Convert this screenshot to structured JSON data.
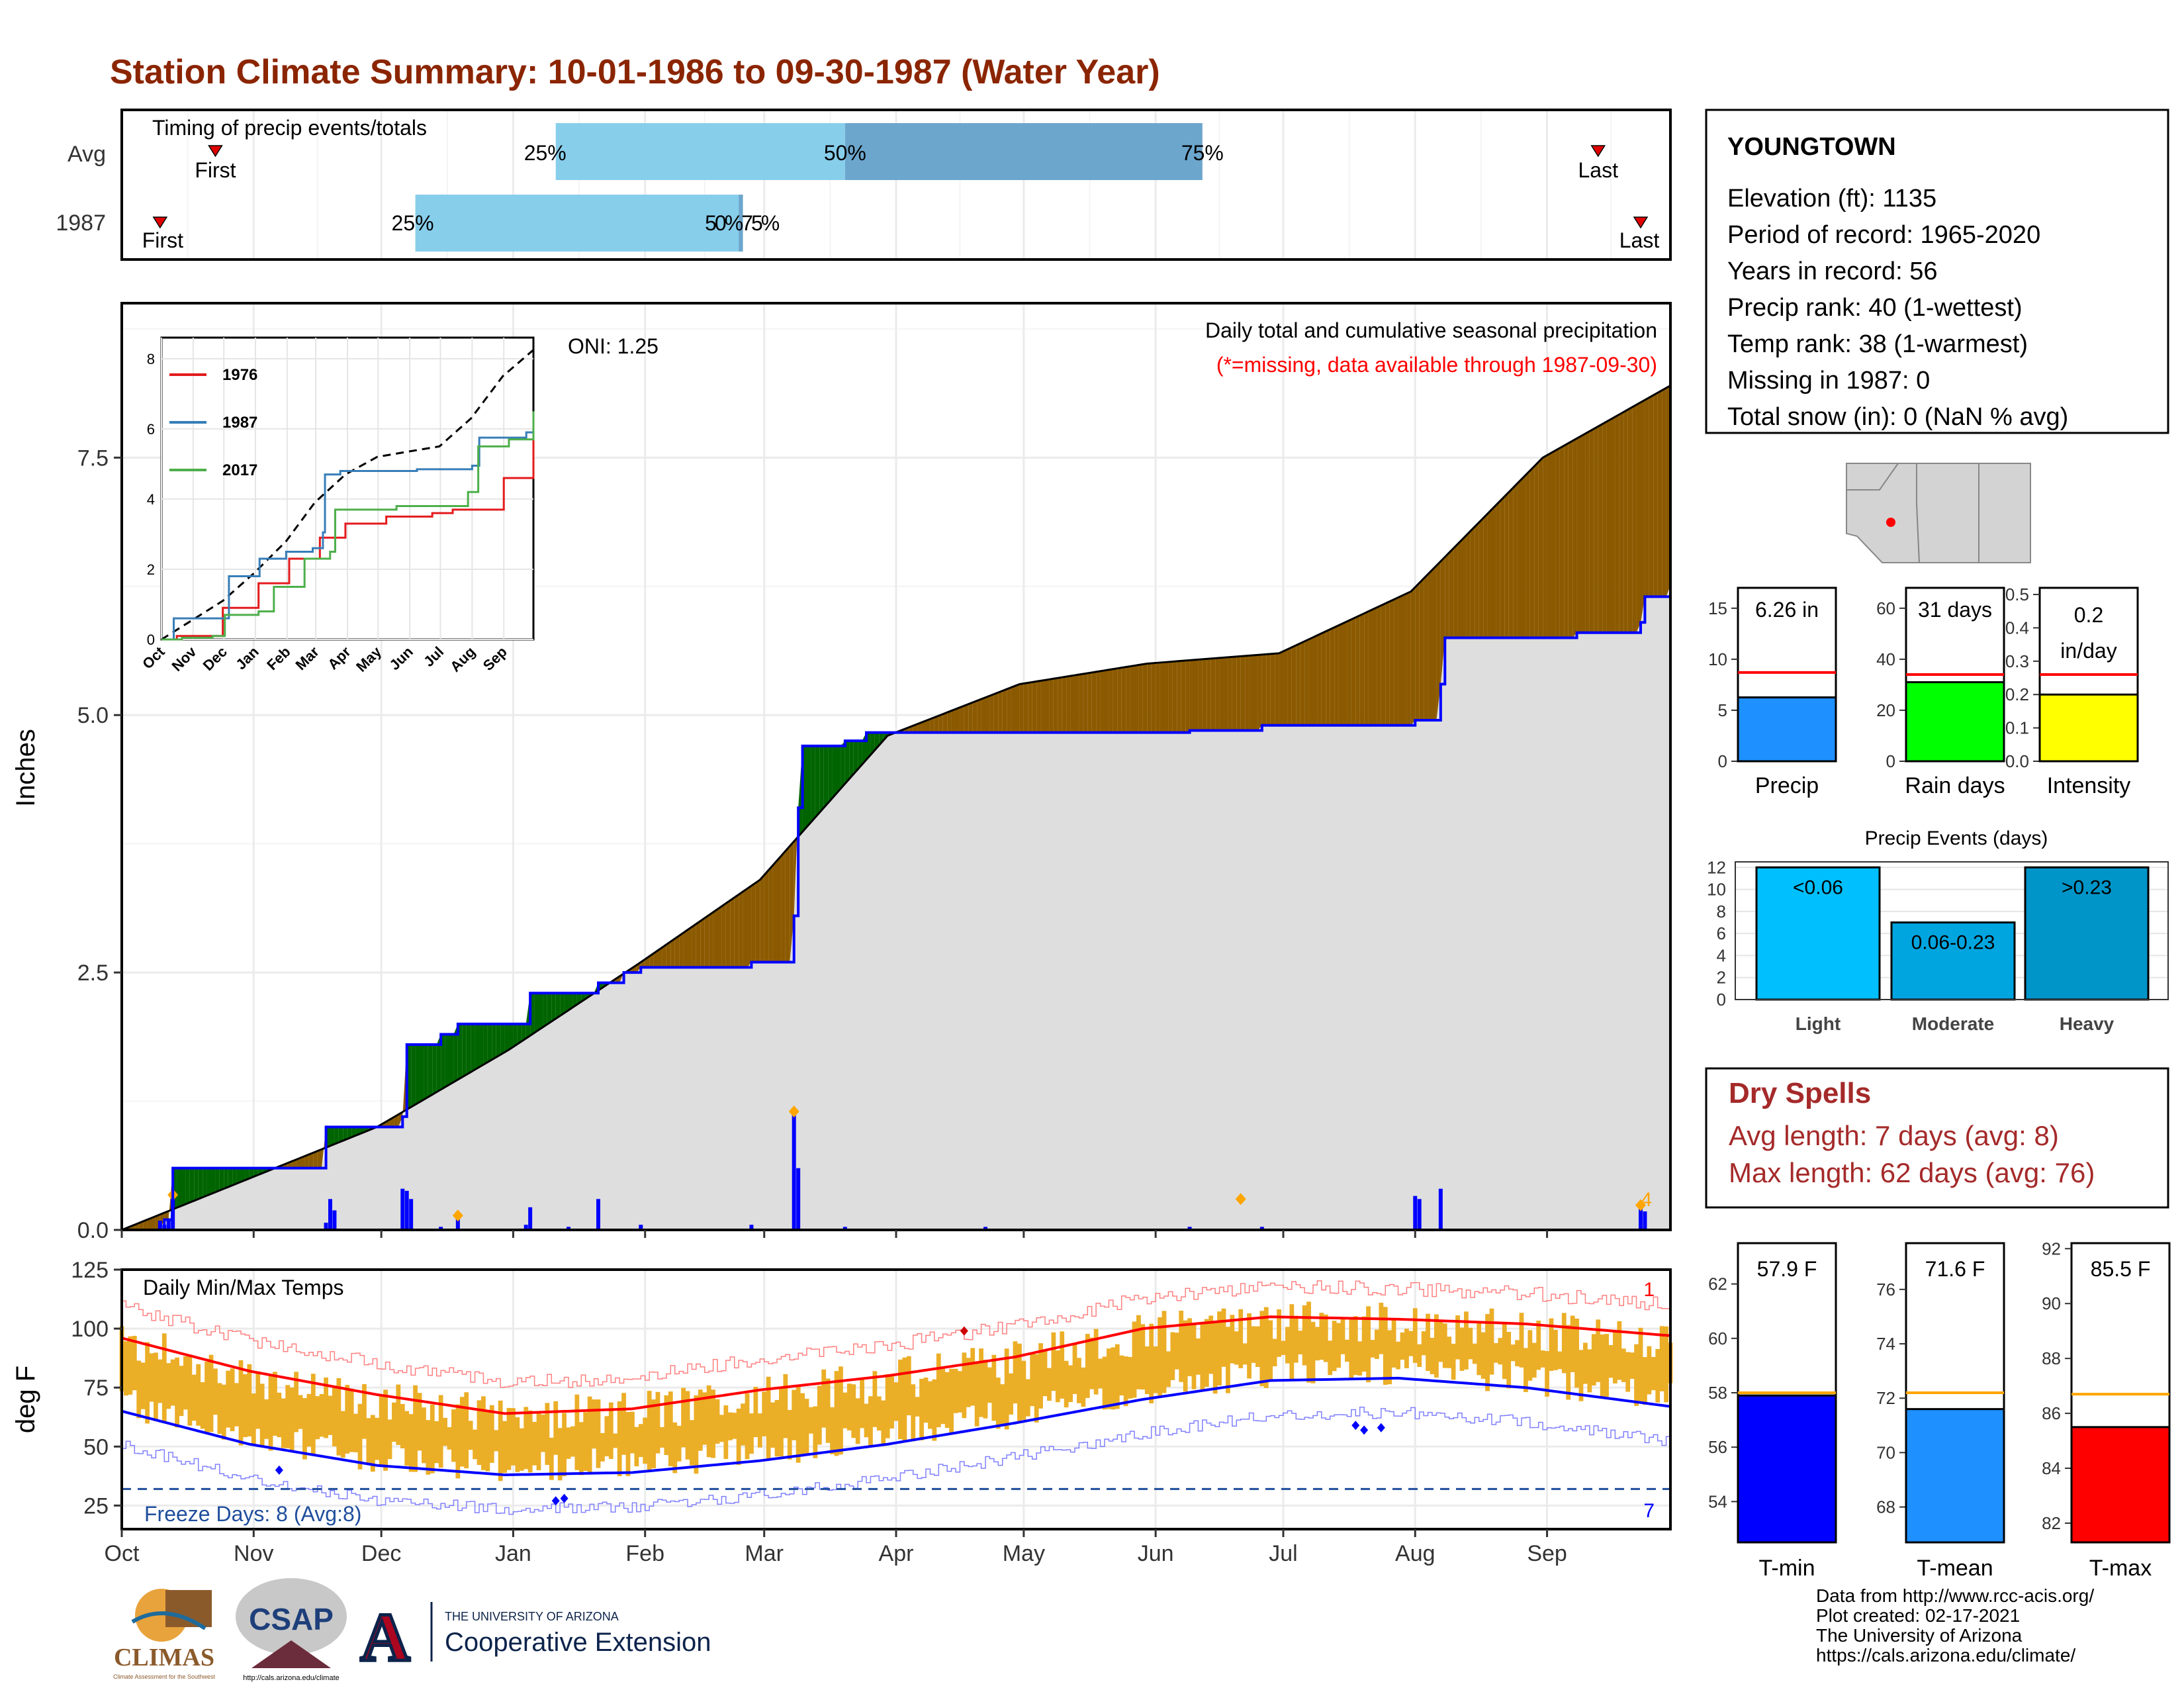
{
  "header": {
    "title": "Station Climate Summary: 10-01-1986 to 09-30-1987 (Water Year)"
  },
  "colors": {
    "title": "#8B2500",
    "surplus": "#006400",
    "deficit": "#8B5A00",
    "area": "#DEDEDE",
    "avg_line": "#000000",
    "current_line": "#0000FF",
    "tmax_avg": "#FF0000",
    "tmin_avg": "#0000FF",
    "range_bar": "#EBAE27",
    "timing_light": "#87CEEB",
    "timing_dark": "#6CA6CD"
  },
  "timing": {
    "title": "Timing of precip events/totals",
    "row_labels": [
      "Avg",
      "1987"
    ],
    "pct_labels": [
      "25%",
      "50%",
      "75%"
    ],
    "overlap_label": "50%75%",
    "first_label": "First",
    "last_label": "Last",
    "avg_days": {
      "first": 22,
      "p25": 102,
      "p50": 170,
      "p75": 254,
      "last": 347
    },
    "yr_days": {
      "first": 9,
      "p25": 69,
      "p50": 145,
      "p75": 146,
      "last": 357
    }
  },
  "precip_panel": {
    "ylabel": "Inches",
    "yticks": [
      "0.0",
      "2.5",
      "5.0",
      "7.5"
    ],
    "oni": "ONI: 1.25",
    "caption1": "Daily total and cumulative seasonal precipitation",
    "caption2": "(*=missing, data available through 1987-09-30)",
    "last_day_count": "4",
    "ymax": 9.0
  },
  "chart_data": {
    "type": "area",
    "title": "Daily total and cumulative seasonal precipitation",
    "ylabel": "Inches",
    "ylim": [
      0,
      9
    ],
    "x_ticks": [
      "Oct",
      "Nov",
      "Dec",
      "Jan",
      "Feb",
      "Mar",
      "Apr",
      "May",
      "Jun",
      "Jul",
      "Aug",
      "Sep"
    ],
    "normal_cumulative": [
      [
        0,
        0.0
      ],
      [
        30,
        0.5
      ],
      [
        60,
        1.0
      ],
      [
        91,
        1.75
      ],
      [
        122,
        2.6
      ],
      [
        150,
        3.4
      ],
      [
        180,
        4.8
      ],
      [
        211,
        5.3
      ],
      [
        241,
        5.5
      ],
      [
        272,
        5.6
      ],
      [
        303,
        6.2
      ],
      [
        334,
        7.5
      ],
      [
        364,
        8.2
      ]
    ],
    "observed_cumulative": [
      [
        0,
        0.0
      ],
      [
        10,
        0.1
      ],
      [
        12,
        0.6
      ],
      [
        45,
        0.6
      ],
      [
        48,
        1.0
      ],
      [
        65,
        1.0
      ],
      [
        66,
        1.1
      ],
      [
        67,
        1.8
      ],
      [
        75,
        1.9
      ],
      [
        79,
        2.0
      ],
      [
        95,
        2.0
      ],
      [
        96,
        2.3
      ],
      [
        105,
        2.3
      ],
      [
        112,
        2.4
      ],
      [
        118,
        2.5
      ],
      [
        122,
        2.55
      ],
      [
        148,
        2.6
      ],
      [
        158,
        3.05
      ],
      [
        159,
        4.1
      ],
      [
        160,
        4.7
      ],
      [
        170,
        4.75
      ],
      [
        175,
        4.83
      ],
      [
        251,
        4.85
      ],
      [
        268,
        4.9
      ],
      [
        304,
        4.95
      ],
      [
        310,
        5.3
      ],
      [
        311,
        5.75
      ],
      [
        342,
        5.8
      ],
      [
        357,
        5.9
      ],
      [
        358,
        6.15
      ],
      [
        364,
        6.26
      ]
    ],
    "daily_precip": [
      [
        9,
        0.09
      ],
      [
        10,
        0.05
      ],
      [
        11,
        0.09
      ],
      [
        12,
        0.34
      ],
      [
        48,
        0.07
      ],
      [
        49,
        0.3
      ],
      [
        50,
        0.19
      ],
      [
        66,
        0.4
      ],
      [
        67,
        0.38
      ],
      [
        68,
        0.3
      ],
      [
        75,
        0.03
      ],
      [
        79,
        0.14
      ],
      [
        95,
        0.05
      ],
      [
        96,
        0.22
      ],
      [
        105,
        0.03
      ],
      [
        112,
        0.3
      ],
      [
        122,
        0.05
      ],
      [
        148,
        0.05
      ],
      [
        158,
        1.15
      ],
      [
        159,
        0.6
      ],
      [
        170,
        0.03
      ],
      [
        203,
        0.03
      ],
      [
        251,
        0.03
      ],
      [
        268,
        0.03
      ],
      [
        304,
        0.33
      ],
      [
        305,
        0.3
      ],
      [
        310,
        0.4
      ],
      [
        357,
        0.24
      ],
      [
        358,
        0.18
      ]
    ],
    "inset": {
      "series": [
        {
          "name": "1976"
        },
        {
          "name": "1987"
        },
        {
          "name": "2017"
        }
      ],
      "ylim": [
        0,
        8
      ],
      "yticks": [
        "0",
        "2",
        "4",
        "6",
        "8"
      ],
      "x_ticks": [
        "Oct",
        "Nov",
        "Dec",
        "Jan",
        "Feb",
        "Mar",
        "Apr",
        "May",
        "Jun",
        "Jul",
        "Aug",
        "Sep"
      ]
    },
    "temps": {
      "title": "Daily Min/Max Temps",
      "ylabel": "deg F",
      "ylim": [
        15,
        125
      ],
      "yticks": [
        "25",
        "50",
        "75",
        "100",
        "125"
      ],
      "freeze_days": "Freeze Days: 8 (Avg:8)",
      "freeze_threshold": 32,
      "record_high_count": "1",
      "record_low_count": "7",
      "avg_max_points": [
        [
          0,
          96
        ],
        [
          30,
          82
        ],
        [
          60,
          72
        ],
        [
          90,
          64
        ],
        [
          120,
          66
        ],
        [
          150,
          74
        ],
        [
          180,
          80
        ],
        [
          210,
          88
        ],
        [
          240,
          100
        ],
        [
          270,
          105
        ],
        [
          300,
          104
        ],
        [
          330,
          102
        ],
        [
          364,
          97
        ]
      ],
      "avg_min_points": [
        [
          0,
          65
        ],
        [
          30,
          51
        ],
        [
          60,
          42
        ],
        [
          90,
          38
        ],
        [
          120,
          39
        ],
        [
          150,
          44
        ],
        [
          180,
          51
        ],
        [
          210,
          60
        ],
        [
          240,
          70
        ],
        [
          270,
          78
        ],
        [
          300,
          79
        ],
        [
          330,
          75
        ],
        [
          364,
          67
        ]
      ]
    }
  },
  "station": {
    "name": "YOUNGTOWN",
    "lines": [
      "Elevation (ft): 1135",
      "Period of record: 1965-2020",
      "Years in record: 56",
      "Precip rank: 40 (1-wettest)",
      "Temp rank: 38 (1-warmest)",
      "Missing in 1987: 0",
      "Total snow (in): 0 (NaN % avg)"
    ]
  },
  "mini_bars": [
    {
      "name": "Precip",
      "value_label": "6.26 in",
      "value": 6.26,
      "avg": 8.7,
      "ymax": 17,
      "yticks": [
        "0",
        "5",
        "10",
        "15"
      ],
      "tickvals": [
        0,
        5,
        10,
        15
      ],
      "color": "#1E90FF"
    },
    {
      "name": "Rain days",
      "value_label": "31 days",
      "value": 31,
      "avg": 34,
      "ymax": 68,
      "yticks": [
        "0",
        "20",
        "40",
        "60"
      ],
      "tickvals": [
        0,
        20,
        40,
        60
      ],
      "color": "#00FF00"
    },
    {
      "name": "Intensity",
      "value_label": "0.2",
      "value_label2": "in/day",
      "value": 0.2,
      "avg": 0.26,
      "ymax": 0.52,
      "yticks": [
        "0.0",
        "0.1",
        "0.2",
        "0.3",
        "0.4",
        "0.5"
      ],
      "tickvals": [
        0,
        0.1,
        0.2,
        0.3,
        0.4,
        0.5
      ],
      "color": "#FFFF00"
    }
  ],
  "events": {
    "title": "Precip Events (days)",
    "ymax": 12.5,
    "yticks": [
      "0",
      "2",
      "4",
      "6",
      "8",
      "10",
      "12"
    ],
    "bars": [
      {
        "name": "Light",
        "label": "<0.06",
        "value": 12,
        "color": "#00BFFF"
      },
      {
        "name": "Moderate",
        "label": "0.06-0.23",
        "value": 7,
        "color": "#00A5E0"
      },
      {
        "name": "Heavy",
        "label": ">0.23",
        "value": 12,
        "color": "#0095C8"
      }
    ]
  },
  "dry_spells": {
    "title": "Dry Spells",
    "avg_length": "Avg length: 7 days (avg: 8)",
    "max_length": "Max length: 62 days (avg: 76)"
  },
  "temp_bars": [
    {
      "name": "T-min",
      "value_label": "57.9 F",
      "value": 57.9,
      "avg": 58.0,
      "ylim": [
        52.5,
        63.5
      ],
      "yticks": [
        "54",
        "56",
        "58",
        "60",
        "62"
      ],
      "tickvals": [
        54,
        56,
        58,
        60,
        62
      ],
      "color": "#0000FF"
    },
    {
      "name": "T-mean",
      "value_label": "71.6 F",
      "value": 71.6,
      "avg": 72.2,
      "ylim": [
        66.7,
        77.7
      ],
      "yticks": [
        "68",
        "70",
        "72",
        "74",
        "76"
      ],
      "tickvals": [
        68,
        70,
        72,
        74,
        76
      ],
      "color": "#1E90FF"
    },
    {
      "name": "T-max",
      "value_label": "85.5 F",
      "value": 85.5,
      "avg": 86.7,
      "ylim": [
        81.3,
        92.2
      ],
      "yticks": [
        "82",
        "84",
        "86",
        "88",
        "90",
        "92"
      ],
      "tickvals": [
        82,
        84,
        86,
        88,
        90,
        92
      ],
      "color": "#FF0000"
    }
  ],
  "footer": {
    "credits": [
      "Data from http://www.rcc-acis.org/",
      "Plot created: 02-17-2021",
      "The University of Arizona",
      "https://cals.arizona.edu/climate/"
    ],
    "logos": {
      "climas": "CLIMAS",
      "climas_sub": "Climate Assessment for the Southwest",
      "csap": "CSAP",
      "csap_url": "http://cals.arizona.edu/climate",
      "ua_letter": "A",
      "ua_small": "THE UNIVERSITY OF ARIZONA",
      "ua_big": "Cooperative Extension"
    }
  }
}
